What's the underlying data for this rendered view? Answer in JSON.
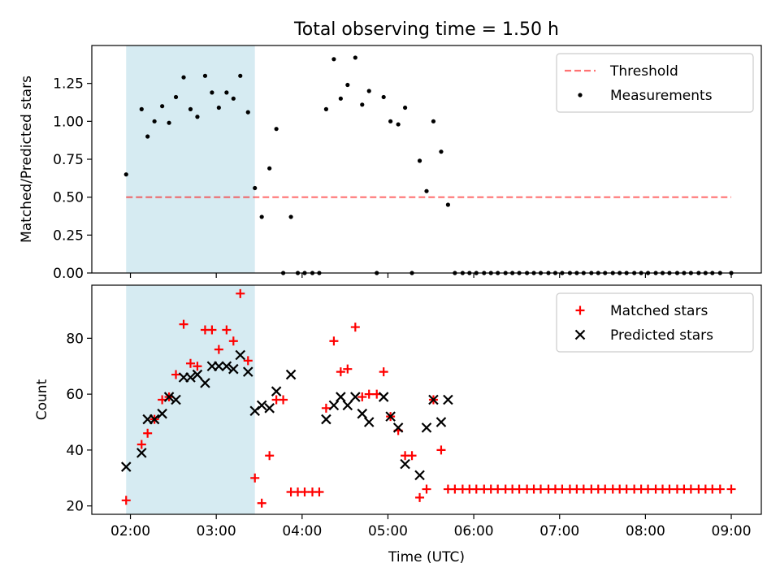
{
  "figure": {
    "title": "Total observing time = 1.50 h"
  },
  "chart_data": [
    {
      "type": "scatter",
      "title": "Total observing time = 1.50 h",
      "xlabel": "",
      "ylabel": "Matched/Predicted stars",
      "xlim": [
        1.55,
        9.35
      ],
      "ylim": [
        0,
        1.5
      ],
      "xticks": [
        2,
        3,
        4,
        5,
        6,
        7,
        8,
        9
      ],
      "yticks": [
        0.0,
        0.25,
        0.5,
        0.75,
        1.0,
        1.25
      ],
      "ytick_labels": [
        "0.00",
        "0.25",
        "0.50",
        "0.75",
        "1.00",
        "1.25"
      ],
      "shaded_span": {
        "x": [
          1.95,
          3.45
        ],
        "color": "#add8e6"
      },
      "threshold": {
        "name": "Threshold",
        "y": 0.5,
        "x": [
          1.95,
          9.0
        ],
        "color": "#ff0000",
        "style": "dashed"
      },
      "legend": "top-right",
      "series": [
        {
          "name": "Measurements",
          "marker": "dot",
          "color": "#000000",
          "x": [
            1.95,
            2.13,
            2.2,
            2.28,
            2.37,
            2.45,
            2.53,
            2.62,
            2.7,
            2.78,
            2.87,
            2.95,
            3.03,
            3.12,
            3.2,
            3.28,
            3.37,
            3.45,
            3.53,
            3.62,
            3.7,
            3.78,
            3.87,
            3.95,
            4.03,
            4.12,
            4.2,
            4.28,
            4.37,
            4.45,
            4.53,
            4.62,
            4.7,
            4.78,
            4.87,
            4.95,
            5.03,
            5.12,
            5.2,
            5.28,
            5.37,
            5.45,
            5.53,
            5.62,
            5.7,
            5.78,
            5.87,
            5.95,
            6.03,
            6.12,
            6.2,
            6.28,
            6.37,
            6.45,
            6.53,
            6.62,
            6.7,
            6.78,
            6.87,
            6.95,
            7.03,
            7.12,
            7.2,
            7.28,
            7.37,
            7.45,
            7.53,
            7.62,
            7.7,
            7.78,
            7.87,
            7.95,
            8.03,
            8.12,
            8.2,
            8.28,
            8.37,
            8.45,
            8.53,
            8.62,
            8.7,
            8.78,
            8.87,
            9.0
          ],
          "y": [
            0.65,
            1.08,
            0.9,
            1.0,
            1.1,
            0.99,
            1.16,
            1.29,
            1.08,
            1.03,
            1.3,
            1.19,
            1.09,
            1.19,
            1.15,
            1.3,
            1.06,
            0.56,
            0.37,
            0.69,
            0.95,
            0.0,
            0.37,
            0.0,
            0.0,
            0.0,
            0.0,
            1.08,
            1.41,
            1.15,
            1.24,
            1.42,
            1.11,
            1.2,
            0.0,
            1.16,
            1.0,
            0.98,
            1.09,
            0.0,
            0.74,
            0.54,
            1.0,
            0.8,
            0.45,
            0.0,
            0.0,
            0.0,
            0.0,
            0.0,
            0.0,
            0.0,
            0.0,
            0.0,
            0.0,
            0.0,
            0.0,
            0.0,
            0.0,
            0.0,
            0.0,
            0.0,
            0.0,
            0.0,
            0.0,
            0.0,
            0.0,
            0.0,
            0.0,
            0.0,
            0.0,
            0.0,
            0.0,
            0.0,
            0.0,
            0.0,
            0.0,
            0.0,
            0.0,
            0.0,
            0.0,
            0.0,
            0.0,
            0.0
          ]
        }
      ]
    },
    {
      "type": "scatter",
      "title": "",
      "xlabel": "Time (UTC)",
      "ylabel": "Count",
      "xlim": [
        1.55,
        9.35
      ],
      "ylim": [
        17,
        99
      ],
      "xticks": [
        2,
        3,
        4,
        5,
        6,
        7,
        8,
        9
      ],
      "xtick_labels": [
        "02:00",
        "03:00",
        "04:00",
        "05:00",
        "06:00",
        "07:00",
        "08:00",
        "09:00"
      ],
      "yticks": [
        20,
        40,
        60,
        80
      ],
      "ytick_labels": [
        "20",
        "40",
        "60",
        "80"
      ],
      "shaded_span": {
        "x": [
          1.95,
          3.45
        ],
        "color": "#add8e6"
      },
      "legend": "top-right",
      "series": [
        {
          "name": "Matched stars",
          "marker": "plus",
          "color": "#ff0000",
          "x": [
            1.95,
            2.13,
            2.2,
            2.28,
            2.37,
            2.45,
            2.53,
            2.62,
            2.7,
            2.78,
            2.87,
            2.95,
            3.03,
            3.12,
            3.2,
            3.28,
            3.37,
            3.45,
            3.53,
            3.62,
            3.7,
            3.78,
            3.87,
            3.95,
            4.03,
            4.12,
            4.2,
            4.28,
            4.37,
            4.45,
            4.53,
            4.62,
            4.7,
            4.78,
            4.87,
            4.95,
            5.03,
            5.12,
            5.2,
            5.28,
            5.37,
            5.45,
            5.53,
            5.62,
            5.7,
            5.78,
            5.87,
            5.95,
            6.03,
            6.12,
            6.2,
            6.28,
            6.37,
            6.45,
            6.53,
            6.62,
            6.7,
            6.78,
            6.87,
            6.95,
            7.03,
            7.12,
            7.2,
            7.28,
            7.37,
            7.45,
            7.53,
            7.62,
            7.7,
            7.78,
            7.87,
            7.95,
            8.03,
            8.12,
            8.2,
            8.28,
            8.37,
            8.45,
            8.53,
            8.62,
            8.7,
            8.78,
            8.87,
            9.0
          ],
          "y": [
            22,
            42,
            46,
            51,
            58,
            59,
            67,
            85,
            71,
            70,
            83,
            83,
            76,
            83,
            79,
            96,
            72,
            30,
            21,
            38,
            58,
            58,
            25,
            25,
            25,
            25,
            25,
            55,
            79,
            68,
            69,
            84,
            59,
            60,
            60,
            68,
            52,
            47,
            38,
            38,
            23,
            26,
            58,
            40,
            26,
            26,
            26,
            26,
            26,
            26,
            26,
            26,
            26,
            26,
            26,
            26,
            26,
            26,
            26,
            26,
            26,
            26,
            26,
            26,
            26,
            26,
            26,
            26,
            26,
            26,
            26,
            26,
            26,
            26,
            26,
            26,
            26,
            26,
            26,
            26,
            26,
            26,
            26,
            26
          ]
        },
        {
          "name": "Predicted stars",
          "marker": "x",
          "color": "#000000",
          "x": [
            1.95,
            2.13,
            2.2,
            2.28,
            2.37,
            2.45,
            2.53,
            2.62,
            2.7,
            2.78,
            2.87,
            2.95,
            3.03,
            3.12,
            3.2,
            3.28,
            3.37,
            3.45,
            3.53,
            3.62,
            3.7,
            3.87,
            4.28,
            4.37,
            4.45,
            4.53,
            4.62,
            4.7,
            4.78,
            4.95,
            5.03,
            5.12,
            5.2,
            5.37,
            5.45,
            5.53,
            5.62,
            5.7
          ],
          "y": [
            34,
            39,
            51,
            51,
            53,
            59,
            58,
            66,
            66,
            67,
            64,
            70,
            70,
            70,
            69,
            74,
            68,
            54,
            56,
            55,
            61,
            67,
            51,
            56,
            59,
            56,
            59,
            53,
            50,
            59,
            52,
            48,
            35,
            31,
            48,
            58,
            50,
            58
          ]
        }
      ]
    }
  ]
}
